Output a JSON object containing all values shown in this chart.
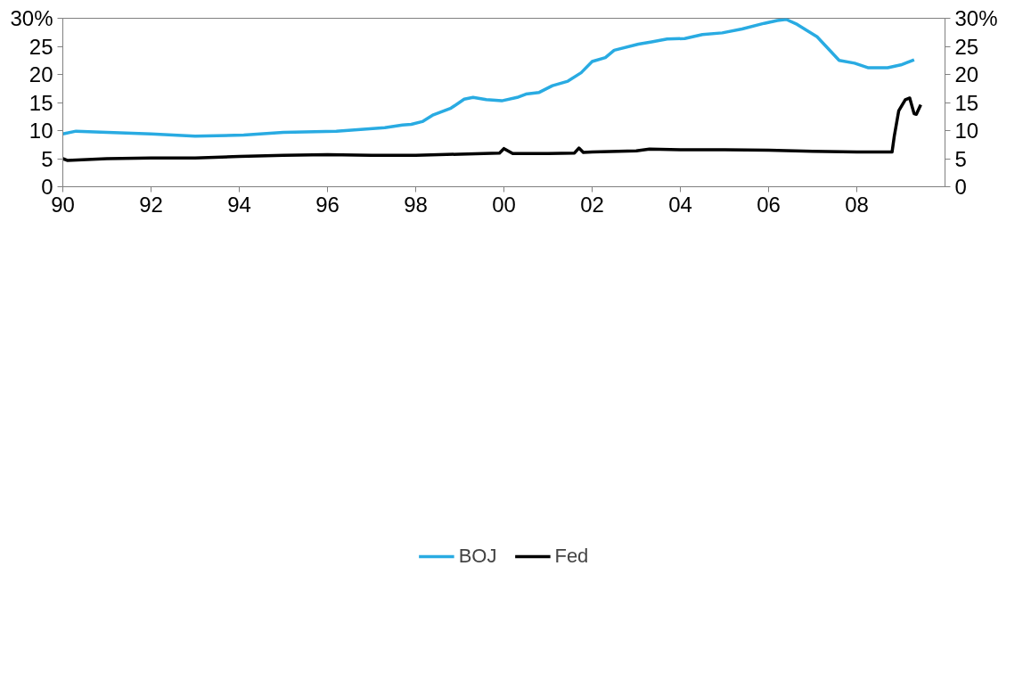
{
  "chart_data": {
    "type": "line",
    "xlim": [
      1990,
      2010
    ],
    "xticks": [
      {
        "value": 1990,
        "label": "90"
      },
      {
        "value": 1992,
        "label": "92"
      },
      {
        "value": 1994,
        "label": "94"
      },
      {
        "value": 1996,
        "label": "96"
      },
      {
        "value": 1998,
        "label": "98"
      },
      {
        "value": 2000,
        "label": "00"
      },
      {
        "value": 2002,
        "label": "02"
      },
      {
        "value": 2004,
        "label": "04"
      },
      {
        "value": 2006,
        "label": "06"
      },
      {
        "value": 2008,
        "label": "08"
      }
    ],
    "ylim": [
      0,
      30
    ],
    "yticks": [
      0,
      5,
      10,
      15,
      20,
      25,
      {
        "value": 30,
        "label": "30%"
      }
    ],
    "y2lim": [
      0,
      30
    ],
    "y2ticks": [
      0,
      5,
      10,
      15,
      20,
      25,
      {
        "value": 30,
        "label": "30%"
      }
    ],
    "grid": false,
    "legend": "bottom",
    "line_style": "solid",
    "marker": "none",
    "series": [
      {
        "name": "BOJ",
        "color": "#29abe2",
        "x": [
          1990,
          1990.3,
          1992,
          1993,
          1994.1,
          1995,
          1996.2,
          1997.3,
          1997.7,
          1997.9,
          1998.15,
          1998.4,
          1998.8,
          1999.1,
          1999.3,
          1999.6,
          1999.95,
          2000.3,
          2000.5,
          2000.8,
          2001.1,
          2001.45,
          2001.75,
          2002,
          2002.3,
          2002.5,
          2003.05,
          2003.35,
          2003.7,
          2004.1,
          2004.5,
          2004.95,
          2005.4,
          2005.9,
          2006.2,
          2006.4,
          2006.65,
          2007.1,
          2007.6,
          2007.95,
          2008.25,
          2008.7,
          2009,
          2009.3
        ],
        "values": [
          9.4,
          9.9,
          9.4,
          9.0,
          9.2,
          9.7,
          9.9,
          10.5,
          11.0,
          11.1,
          11.6,
          12.8,
          14.0,
          15.6,
          15.9,
          15.5,
          15.3,
          15.9,
          16.5,
          16.8,
          18.0,
          18.8,
          20.3,
          22.3,
          23.0,
          24.3,
          25.4,
          25.8,
          26.3,
          26.4,
          27.1,
          27.4,
          28.1,
          29.1,
          29.6,
          29.8,
          28.9,
          26.7,
          22.5,
          22.0,
          21.2,
          21.2,
          21.7,
          22.6
        ]
      },
      {
        "name": "Fed",
        "color": "#000000",
        "x": [
          1990,
          1990.1,
          1991,
          1992,
          1993,
          1994,
          1995,
          1996,
          1997,
          1998,
          1999,
          1999.9,
          2000.0,
          2000.2,
          2001,
          2001.6,
          2001.7,
          2001.8,
          2002,
          2003,
          2003.3,
          2004,
          2005,
          2006,
          2007,
          2008,
          2008.8,
          2008.85,
          2008.95,
          2009.1,
          2009.2,
          2009.3,
          2009.35,
          2009.45
        ],
        "values": [
          5.0,
          4.7,
          5.0,
          5.1,
          5.1,
          5.4,
          5.6,
          5.7,
          5.6,
          5.6,
          5.8,
          6.0,
          6.8,
          5.9,
          5.9,
          6.0,
          6.9,
          6.1,
          6.2,
          6.4,
          6.7,
          6.6,
          6.6,
          6.5,
          6.3,
          6.2,
          6.2,
          9.0,
          13.5,
          15.5,
          15.8,
          13.0,
          12.9,
          14.6
        ]
      }
    ]
  }
}
